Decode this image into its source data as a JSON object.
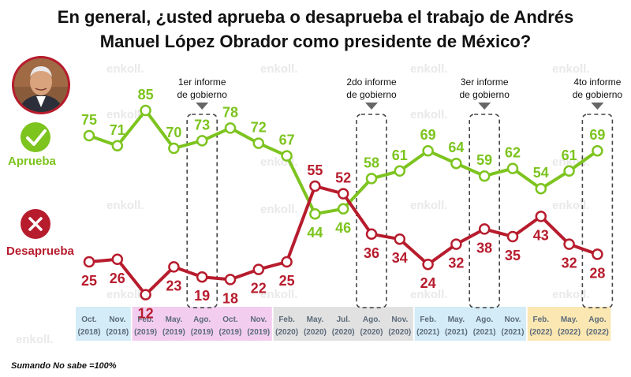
{
  "title": {
    "line1": "En general, ¿usted aprueba o desaprueba el trabajo de Andrés",
    "line2": "Manuel López Obrador como presidente de México?"
  },
  "watermark": "enkoll.",
  "footnote": "Sumando No sabe =100%",
  "legend": {
    "approve": {
      "label": "Aprueba",
      "icon": "check-icon",
      "color": "#7dc41f"
    },
    "disapprove": {
      "label": "Desaprueba",
      "icon": "x-icon",
      "color": "#b71c2d"
    }
  },
  "annotations": [
    {
      "label_lines": [
        "1er informe",
        "de gobierno"
      ],
      "period_index": 4
    },
    {
      "label_lines": [
        "2do informe",
        "de gobierno"
      ],
      "period_index": 10
    },
    {
      "label_lines": [
        "3er informe",
        "de gobierno"
      ],
      "period_index": 14
    },
    {
      "label_lines": [
        "4to informe",
        "de gobierno"
      ],
      "period_index": 18
    }
  ],
  "colors": {
    "year_2018": "#d3ecf7",
    "year_2019": "#f3cdef",
    "year_2020": "#e1e1e1",
    "year_2021": "#d3ecf7",
    "year_2022": "#fbe7b2",
    "tick_text": "#5c6b7a"
  },
  "chart_data": {
    "type": "line",
    "title": "En general, ¿usted aprueba o desaprueba el trabajo de Andrés Manuel López Obrador como presidente de México?",
    "ylim": [
      0,
      100
    ],
    "grid": false,
    "periods": [
      {
        "month": "Oct.",
        "year": "(2018)",
        "group": "year_2018"
      },
      {
        "month": "Nov.",
        "year": "(2018)",
        "group": "year_2018"
      },
      {
        "month": "Feb.",
        "year": "(2019)",
        "group": "year_2019"
      },
      {
        "month": "May.",
        "year": "(2019)",
        "group": "year_2019"
      },
      {
        "month": "Ago.",
        "year": "(2019)",
        "group": "year_2019"
      },
      {
        "month": "Oct.",
        "year": "(2019)",
        "group": "year_2019"
      },
      {
        "month": "Nov.",
        "year": "(2019)",
        "group": "year_2019"
      },
      {
        "month": "Feb.",
        "year": "(2020)",
        "group": "year_2020"
      },
      {
        "month": "May.",
        "year": "(2020)",
        "group": "year_2020"
      },
      {
        "month": "Jul.",
        "year": "(2020)",
        "group": "year_2020"
      },
      {
        "month": "Ago.",
        "year": "(2020)",
        "group": "year_2020"
      },
      {
        "month": "Nov.",
        "year": "(2020)",
        "group": "year_2020"
      },
      {
        "month": "Feb.",
        "year": "(2021)",
        "group": "year_2021"
      },
      {
        "month": "May.",
        "year": "(2021)",
        "group": "year_2021"
      },
      {
        "month": "Ago.",
        "year": "(2021)",
        "group": "year_2021"
      },
      {
        "month": "Nov.",
        "year": "(2021)",
        "group": "year_2021"
      },
      {
        "month": "Feb.",
        "year": "(2022)",
        "group": "year_2022"
      },
      {
        "month": "May.",
        "year": "(2022)",
        "group": "year_2022"
      },
      {
        "month": "Ago.",
        "year": "(2022)",
        "group": "year_2022"
      }
    ],
    "series": [
      {
        "name": "Aprueba",
        "key": "approve",
        "color": "#7dc41f",
        "values": [
          75,
          71,
          85,
          70,
          73,
          78,
          72,
          67,
          44,
          46,
          58,
          61,
          69,
          64,
          59,
          62,
          54,
          61,
          69
        ]
      },
      {
        "name": "Desaprueba",
        "key": "disapprove",
        "color": "#b71c2d",
        "values": [
          25,
          26,
          12,
          23,
          19,
          18,
          22,
          25,
          55,
          52,
          36,
          34,
          24,
          32,
          38,
          35,
          43,
          32,
          28
        ]
      }
    ]
  }
}
